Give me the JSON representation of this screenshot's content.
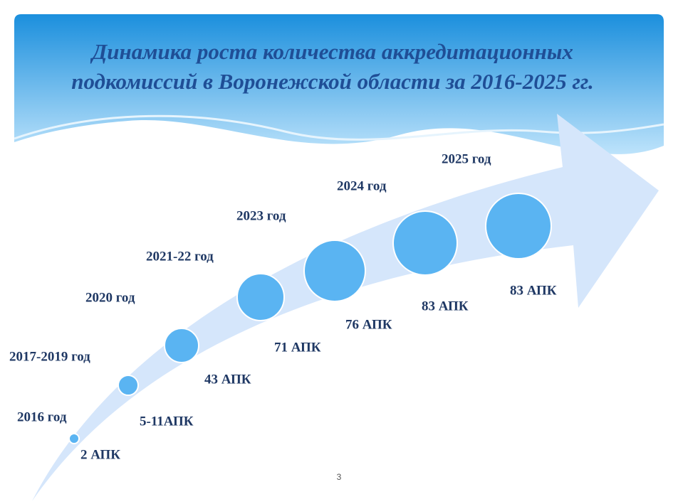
{
  "title": {
    "line1": "Динамика роста  количества аккредитационных",
    "line2": "подкомиссий в Воронежской области за 2016-2025 гг."
  },
  "steps": [
    {
      "year": "2016 год",
      "count": "2 АПК"
    },
    {
      "year": "2017-2019 год",
      "count": "5-11АПК"
    },
    {
      "year": "2020 год",
      "count": "43 АПК"
    },
    {
      "year": "2021-22 год",
      "count": "71 АПК"
    },
    {
      "year": "2023 год",
      "count": "76 АПК"
    },
    {
      "year": "2024 год",
      "count": "83 АПК"
    },
    {
      "year": "2025 год",
      "count": "83 АПК"
    }
  ],
  "page_number": "3"
}
